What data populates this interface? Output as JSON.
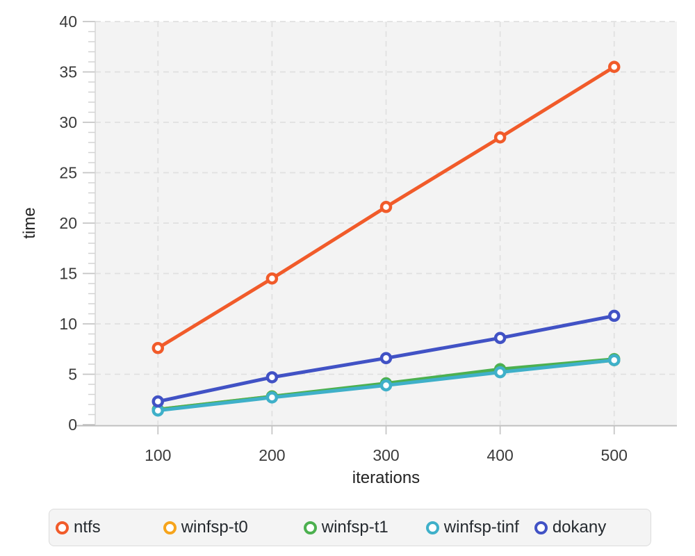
{
  "chart_data": {
    "type": "line",
    "title": "",
    "xlabel": "iterations",
    "ylabel": "time",
    "x": [
      100,
      200,
      300,
      400,
      500
    ],
    "x_ticks": [
      100,
      200,
      300,
      400,
      500
    ],
    "y_ticks": [
      0,
      5,
      10,
      15,
      20,
      25,
      30,
      35,
      40
    ],
    "xlim": [
      45,
      555
    ],
    "ylim": [
      0,
      40
    ],
    "grid": "dashed horizontal and vertical at major ticks",
    "legend_position": "bottom",
    "series": [
      {
        "name": "ntfs",
        "color": "#f15b2a",
        "values": [
          7.6,
          14.5,
          21.6,
          28.5,
          35.5
        ]
      },
      {
        "name": "winfsp-t0",
        "color": "#f6a41c",
        "values": [
          1.5,
          2.8,
          4.0,
          5.3,
          6.4
        ]
      },
      {
        "name": "winfsp-t1",
        "color": "#4cb04f",
        "values": [
          1.5,
          2.8,
          4.1,
          5.5,
          6.5
        ]
      },
      {
        "name": "winfsp-tinf",
        "color": "#3fb0c9",
        "values": [
          1.4,
          2.7,
          3.9,
          5.2,
          6.4
        ]
      },
      {
        "name": "dokany",
        "color": "#4152c5",
        "values": [
          2.3,
          4.7,
          6.6,
          8.6,
          10.8
        ]
      }
    ],
    "draw_order": [
      1,
      2,
      3,
      4,
      0
    ],
    "colors": {
      "plot_background": "#f3f3f3",
      "figure_background": "#ffffff",
      "gridline": "#e0e0e0",
      "tick": "#c4c4c4",
      "axis_line": "#bdbdbd",
      "tick_label": "#3b3b3b",
      "axis_title": "#222222"
    }
  }
}
